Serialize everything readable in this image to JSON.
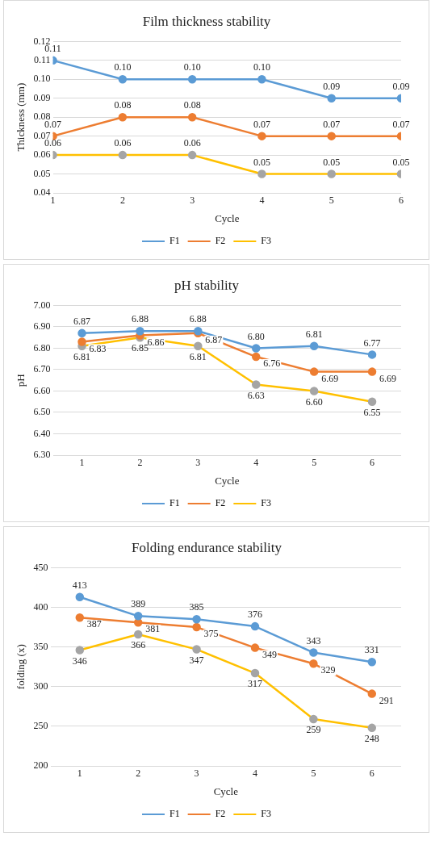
{
  "chart_data": [
    {
      "type": "line",
      "title": "Film thickness stability",
      "xlabel": "Cycle",
      "ylabel": "Thickness (mm)",
      "x": [
        1,
        2,
        3,
        4,
        5,
        6
      ],
      "xlim": [
        1,
        6
      ],
      "xticks": [
        1,
        2,
        3,
        4,
        5,
        6
      ],
      "ylim": [
        0.04,
        0.12
      ],
      "yticks": [
        {
          "value": 0.04,
          "label": "0.04"
        },
        {
          "value": 0.05,
          "label": "0.05"
        },
        {
          "value": 0.06,
          "label": "0.06"
        },
        {
          "value": 0.07,
          "label": "0.07"
        },
        {
          "value": 0.08,
          "label": "0.08"
        },
        {
          "value": 0.09,
          "label": "0.09"
        },
        {
          "value": 0.1,
          "label": "0.10"
        },
        {
          "value": 0.11,
          "label": "0.11"
        },
        {
          "value": 0.12,
          "label": "0.12"
        }
      ],
      "grid": "y",
      "legend": "bottom",
      "marker": "circle",
      "series": [
        {
          "name": "F1",
          "color": "#5b9bd5",
          "values": [
            0.11,
            0.1,
            0.1,
            0.1,
            0.09,
            0.09
          ],
          "value_labels": [
            "0.11",
            "0.10",
            "0.10",
            "0.10",
            "0.09",
            "0.09"
          ]
        },
        {
          "name": "F2",
          "color": "#ed7d31",
          "values": [
            0.07,
            0.08,
            0.08,
            0.07,
            0.07,
            0.07
          ],
          "value_labels": [
            "0.07",
            "0.08",
            "0.08",
            "0.07",
            "0.07",
            "0.07"
          ]
        },
        {
          "name": "F3",
          "color": "#ffc000",
          "colors": [
            "#a5a5a5",
            "#a5a5a5",
            "#a5a5a5",
            "#a5a5a5",
            "#a5a5a5",
            "#a5a5a5"
          ],
          "values": [
            0.06,
            0.06,
            0.06,
            0.05,
            0.05,
            0.05
          ],
          "value_labels": [
            "0.06",
            "0.06",
            "0.06",
            "0.05",
            "0.05",
            "0.05"
          ]
        }
      ]
    },
    {
      "type": "line",
      "title": "pH stability",
      "xlabel": "Cycle",
      "ylabel": "pH",
      "categories": [
        "1",
        "2",
        "3",
        "4",
        "5",
        "6"
      ],
      "ylim": [
        6.3,
        7.0
      ],
      "yticks": [
        {
          "value": 6.3,
          "label": "6.30"
        },
        {
          "value": 6.4,
          "label": "6.40"
        },
        {
          "value": 6.5,
          "label": "6.50"
        },
        {
          "value": 6.6,
          "label": "6.60"
        },
        {
          "value": 6.7,
          "label": "6.70"
        },
        {
          "value": 6.8,
          "label": "6.80"
        },
        {
          "value": 6.9,
          "label": "6.90"
        },
        {
          "value": 7.0,
          "label": "7.00"
        }
      ],
      "grid": "y",
      "legend": "bottom",
      "marker": "circle",
      "series": [
        {
          "name": "F1",
          "color": "#5b9bd5",
          "values": [
            6.87,
            6.88,
            6.88,
            6.8,
            6.81,
            6.77
          ],
          "value_labels": [
            "6.87",
            "6.88",
            "6.88",
            "6.80",
            "6.81",
            "6.77"
          ]
        },
        {
          "name": "F2",
          "color": "#ed7d31",
          "values": [
            6.83,
            6.86,
            6.87,
            6.76,
            6.69,
            6.69
          ],
          "value_labels": [
            "6.83",
            "6.86",
            "6.87",
            "6.76",
            "6.69",
            "6.69"
          ]
        },
        {
          "name": "F3",
          "color": "#ffc000",
          "colors": [
            "#a5a5a5",
            "#a5a5a5",
            "#a5a5a5",
            "#a5a5a5",
            "#a5a5a5",
            "#a5a5a5"
          ],
          "values": [
            6.81,
            6.85,
            6.81,
            6.63,
            6.6,
            6.55
          ],
          "value_labels": [
            "6.81",
            "6.85",
            "6.81",
            "6.63",
            "6.60",
            "6.55"
          ]
        }
      ]
    },
    {
      "type": "line",
      "title": "Folding endurance stability",
      "xlabel": "Cycle",
      "ylabel": "folding (x)",
      "categories": [
        "1",
        "2",
        "3",
        "4",
        "5",
        "6"
      ],
      "ylim": [
        200,
        450
      ],
      "yticks": [
        200,
        250,
        300,
        350,
        400,
        450
      ],
      "grid": "y",
      "legend": "bottom",
      "marker": "circle",
      "data_labels": true,
      "series": [
        {
          "name": "F1",
          "color": "#5b9bd5",
          "values": [
            413,
            389,
            385,
            376,
            343,
            331
          ]
        },
        {
          "name": "F2",
          "color": "#ed7d31",
          "values": [
            387,
            381,
            375,
            349,
            329,
            291
          ]
        },
        {
          "name": "F3",
          "color": "#ffc000",
          "colors": [
            "#a5a5a5",
            "#a5a5a5",
            "#a5a5a5",
            "#a5a5a5",
            "#a5a5a5",
            "#a5a5a5"
          ],
          "values": [
            346,
            366,
            347,
            317,
            259,
            248
          ]
        }
      ]
    }
  ]
}
